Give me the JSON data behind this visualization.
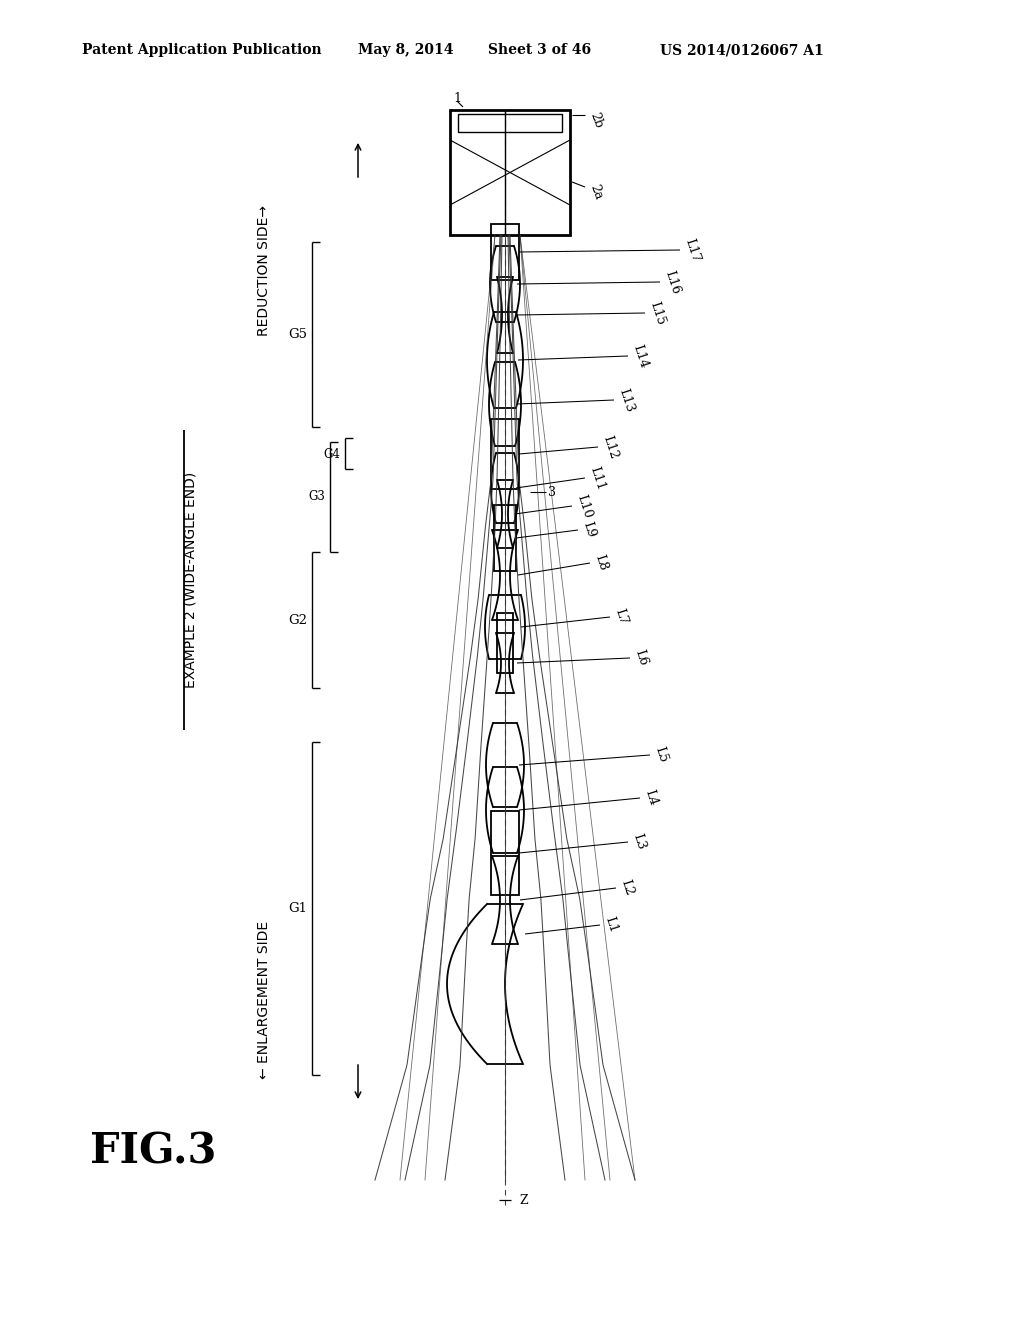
{
  "title_line1": "Patent Application Publication",
  "title_line2": "May 8, 2014",
  "title_line3": "Sheet 3 of 46",
  "title_line4": "US 2014/0126067 A1",
  "fig_label": "FIG.3",
  "example_label": "EXAMPLE 2 (WIDE-ANGLE END)",
  "reduction_label": "REDUCTION SIDE→",
  "enlargement_label": "← ENLARGEMENT SIDE",
  "bg_color": "#ffffff",
  "ink_color": "#000000"
}
